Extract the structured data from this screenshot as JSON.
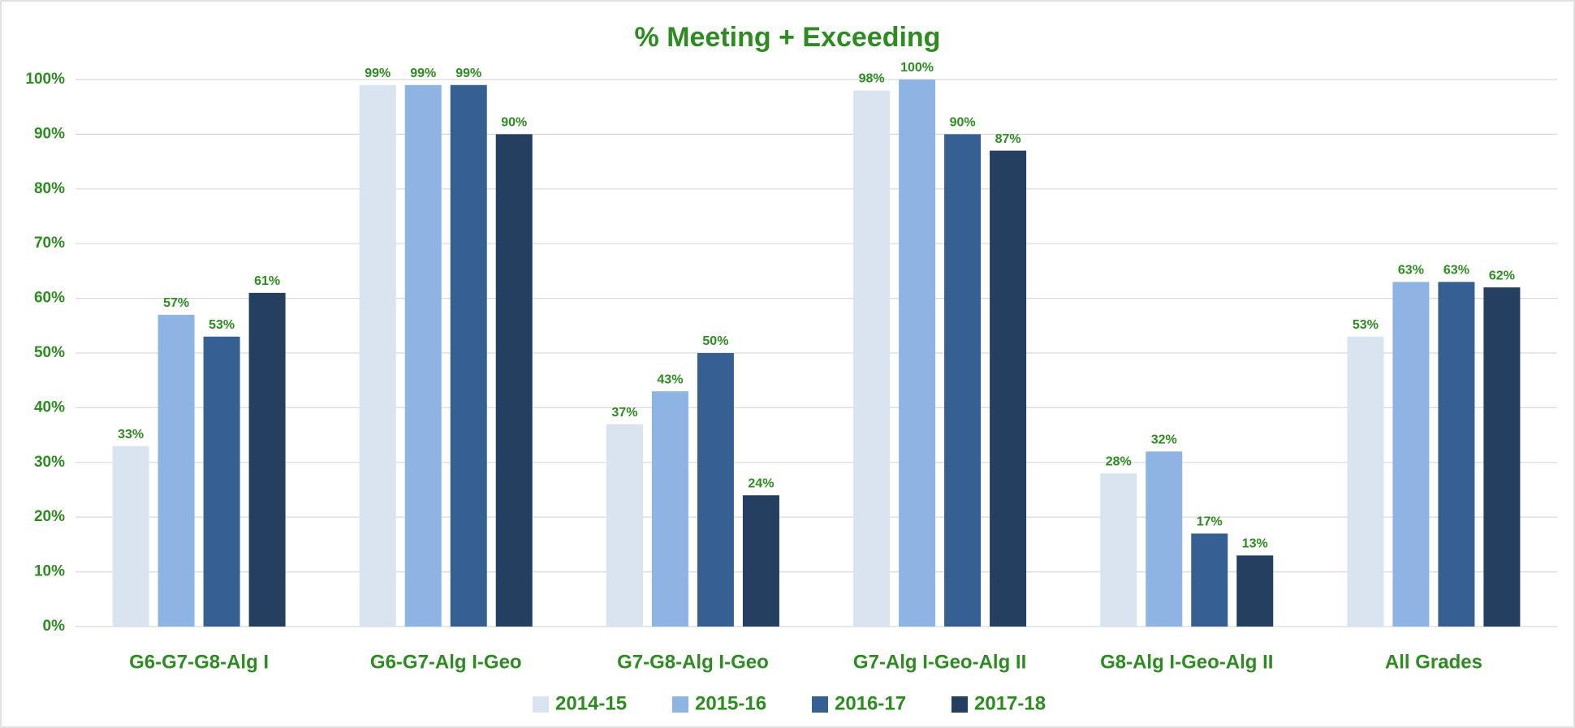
{
  "chart_data": {
    "type": "bar",
    "title": "% Meeting + Exceeding",
    "categories": [
      "G6-G7-G8-Alg I",
      "G6-G7-Alg I-Geo",
      "G7-G8-Alg I-Geo",
      "G7-Alg I-Geo-Alg II",
      "G8-Alg I-Geo-Alg II",
      "All Grades"
    ],
    "series": [
      {
        "name": "2014-15",
        "color": "#dae3f0",
        "values": [
          33,
          99,
          37,
          98,
          28,
          53
        ],
        "value_labels": [
          "33%",
          "99%",
          "37%",
          "98%",
          "28%",
          "53%"
        ]
      },
      {
        "name": "2015-16",
        "color": "#8eb4e3",
        "values": [
          57,
          99,
          43,
          100,
          32,
          63
        ],
        "value_labels": [
          "57%",
          "99%",
          "43%",
          "100%",
          "32%",
          "63%"
        ]
      },
      {
        "name": "2016-17",
        "color": "#376092",
        "values": [
          53,
          99,
          50,
          90,
          17,
          63
        ],
        "value_labels": [
          "53%",
          "99%",
          "50%",
          "90%",
          "17%",
          "63%"
        ]
      },
      {
        "name": "2017-18",
        "color": "#243f60",
        "values": [
          61,
          90,
          24,
          87,
          13,
          62
        ],
        "value_labels": [
          "61%",
          "90%",
          "24%",
          "87%",
          "13%",
          "62%"
        ]
      }
    ],
    "ylim": [
      0,
      100
    ],
    "yticks": [
      {
        "value": 0,
        "label": "0%"
      },
      {
        "value": 10,
        "label": "10%"
      },
      {
        "value": 20,
        "label": "20%"
      },
      {
        "value": 30,
        "label": "30%"
      },
      {
        "value": 40,
        "label": "40%"
      },
      {
        "value": 50,
        "label": "50%"
      },
      {
        "value": 60,
        "label": "60%"
      },
      {
        "value": 70,
        "label": "70%"
      },
      {
        "value": 80,
        "label": "80%"
      },
      {
        "value": 90,
        "label": "90%"
      },
      {
        "value": 100,
        "label": "100%"
      }
    ],
    "grid": true,
    "legend": "bottom"
  }
}
